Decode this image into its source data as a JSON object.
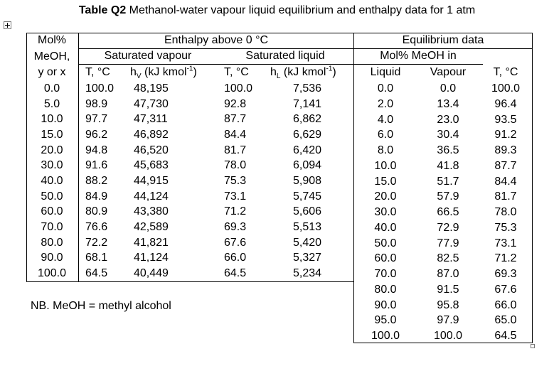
{
  "title": {
    "label": "Table Q2",
    "text": "Methanol-water vapour liquid equilibrium and enthalpy data for 1 atm"
  },
  "enthalpy_table": {
    "group": "Enthalpy above 0 °C",
    "composition_header": [
      "Mol%",
      "MeOH,",
      "y or x"
    ],
    "vapour_header": "Saturated vapour",
    "liquid_header": "Saturated liquid",
    "columns": [
      "T, °C",
      {
        "symbol": "h",
        "subscript": "V",
        "unit": "(kJ kmol",
        "exponent": "-1",
        "close": ")"
      },
      "T, °C",
      {
        "symbol": "h",
        "subscript": "L",
        "unit": "(kJ kmol",
        "exponent": "-1",
        "close": ")"
      }
    ],
    "rows": [
      [
        "0.0",
        "100.0",
        "48,195",
        "100.0",
        "7,536"
      ],
      [
        "5.0",
        "98.9",
        "47,730",
        "92.8",
        "7,141"
      ],
      [
        "10.0",
        "97.7",
        "47,311",
        "87.7",
        "6,862"
      ],
      [
        "15.0",
        "96.2",
        "46,892",
        "84.4",
        "6,629"
      ],
      [
        "20.0",
        "94.8",
        "46,520",
        "81.7",
        "6,420"
      ],
      [
        "30.0",
        "91.6",
        "45,683",
        "78.0",
        "6,094"
      ],
      [
        "40.0",
        "88.2",
        "44,915",
        "75.3",
        "5,908"
      ],
      [
        "50.0",
        "84.9",
        "44,124",
        "73.1",
        "5,745"
      ],
      [
        "60.0",
        "80.9",
        "43,380",
        "71.2",
        "5,606"
      ],
      [
        "70.0",
        "76.6",
        "42,589",
        "69.3",
        "5,513"
      ],
      [
        "80.0",
        "72.2",
        "41,821",
        "67.6",
        "5,420"
      ],
      [
        "90.0",
        "68.1",
        "41,124",
        "66.0",
        "5,327"
      ],
      [
        "100.0",
        "64.5",
        "40,449",
        "64.5",
        "5,234"
      ]
    ]
  },
  "equilibrium_table": {
    "group": "Equilibrium data",
    "subgroup": "Mol% MeOH in",
    "columns": [
      "Liquid",
      "Vapour",
      "T, °C"
    ],
    "rows": [
      [
        "0.0",
        "0.0",
        "100.0"
      ],
      [
        "2.0",
        "13.4",
        "96.4"
      ],
      [
        "4.0",
        "23.0",
        "93.5"
      ],
      [
        "6.0",
        "30.4",
        "91.2"
      ],
      [
        "8.0",
        "36.5",
        "89.3"
      ],
      [
        "10.0",
        "41.8",
        "87.7"
      ],
      [
        "15.0",
        "51.7",
        "84.4"
      ],
      [
        "20.0",
        "57.9",
        "81.7"
      ],
      [
        "30.0",
        "66.5",
        "78.0"
      ],
      [
        "40.0",
        "72.9",
        "75.3"
      ],
      [
        "50.0",
        "77.9",
        "73.1"
      ],
      [
        "60.0",
        "82.5",
        "71.2"
      ],
      [
        "70.0",
        "87.0",
        "69.3"
      ],
      [
        "80.0",
        "91.5",
        "67.6"
      ],
      [
        "90.0",
        "95.8",
        "66.0"
      ],
      [
        "95.0",
        "97.9",
        "65.0"
      ],
      [
        "100.0",
        "100.0",
        "64.5"
      ]
    ]
  },
  "note": "NB. MeOH = methyl alcohol"
}
